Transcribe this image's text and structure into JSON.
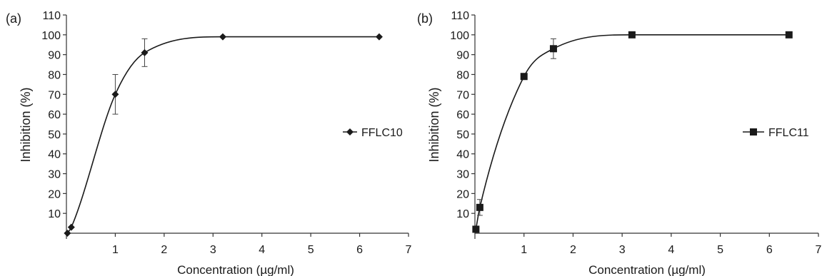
{
  "chart_data": [
    {
      "panel_label": "(a)",
      "type": "line",
      "xlabel": "Concentration (µg/ml)",
      "ylabel": "Inhibition (%)",
      "xlim": [
        0,
        7
      ],
      "ylim": [
        0,
        110
      ],
      "x_ticks": [
        "1",
        "2",
        "3",
        "4",
        "5",
        "6",
        "7"
      ],
      "y_ticks": [
        "10",
        "20",
        "30",
        "40",
        "50",
        "60",
        "70",
        "80",
        "90",
        "100",
        "110"
      ],
      "legend_position": "right",
      "grid": false,
      "series": [
        {
          "name": "FFLC10",
          "marker": "diamond",
          "color": "#1a1a1a",
          "x": [
            0.02,
            0.1,
            1.0,
            1.6,
            3.2,
            6.4
          ],
          "y": [
            0,
            3,
            70,
            91,
            99,
            99
          ],
          "error": [
            0,
            0,
            10,
            7,
            0,
            0
          ]
        }
      ]
    },
    {
      "panel_label": "(b)",
      "type": "line",
      "xlabel": "Concentration (µg/ml)",
      "ylabel": "Inhibition (%)",
      "xlim": [
        0,
        7
      ],
      "ylim": [
        0,
        110
      ],
      "x_ticks": [
        "1",
        "2",
        "3",
        "4",
        "5",
        "6",
        "7"
      ],
      "y_ticks": [
        "10",
        "20",
        "30",
        "40",
        "50",
        "60",
        "70",
        "80",
        "90",
        "100",
        "110"
      ],
      "legend_position": "right",
      "grid": false,
      "series": [
        {
          "name": "FFLC11",
          "marker": "square",
          "color": "#1a1a1a",
          "x": [
            0.02,
            0.1,
            1.0,
            1.6,
            3.2,
            6.4
          ],
          "y": [
            2,
            13,
            79,
            93,
            100,
            100
          ],
          "error": [
            0,
            4,
            0,
            5,
            0,
            0
          ]
        }
      ]
    }
  ]
}
